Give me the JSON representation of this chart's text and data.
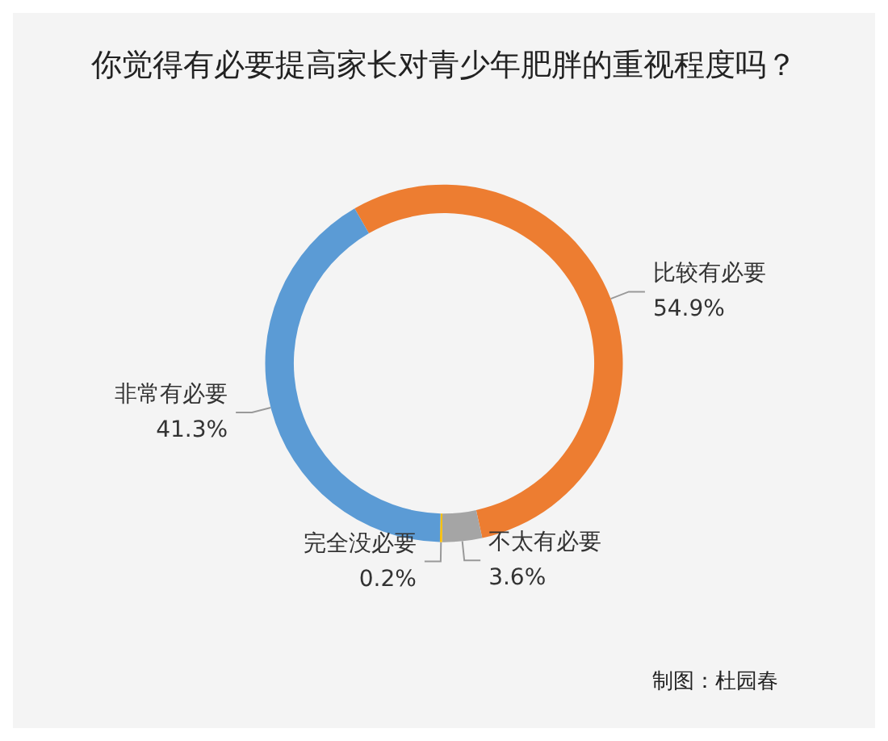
{
  "chart_data": {
    "type": "donut",
    "title": "你觉得有必要提高家长对青少年肥胖的重视程度吗？",
    "categories": [
      "比较有必要",
      "不太有必要",
      "完全没必要",
      "非常有必要"
    ],
    "values": [
      54.9,
      3.6,
      0.2,
      41.3
    ],
    "value_labels": [
      "54.9%",
      "3.6%",
      "0.2%",
      "41.3%"
    ],
    "colors": [
      "#ed7d31",
      "#a5a5a5",
      "#ffc000",
      "#5b9bd5"
    ],
    "legend": false,
    "annotations": [
      "制图：杜园春"
    ]
  }
}
